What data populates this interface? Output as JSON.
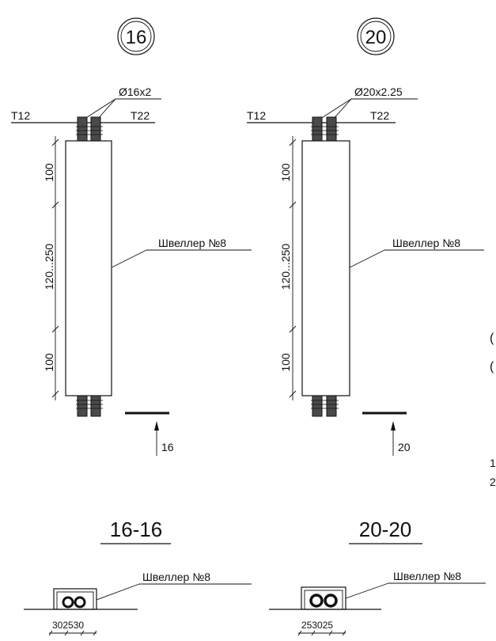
{
  "details": [
    {
      "id": "16",
      "badge": "16",
      "pipe_size": "Ø16x2",
      "label_left": "T12",
      "label_right": "T22",
      "dim_top": "100",
      "dim_mid": "120...250",
      "dim_bottom": "100",
      "channel_label": "Швеллер №8",
      "section_marker": "16",
      "section_title": "16-16",
      "section_channel_label": "Швеллер №8",
      "section_dims": "302530"
    },
    {
      "id": "20",
      "badge": "20",
      "pipe_size": "Ø20x2.25",
      "label_left": "T12",
      "label_right": "T22",
      "dim_top": "100",
      "dim_mid": "120...250",
      "dim_bottom": "100",
      "channel_label": "Швеллер №8",
      "section_marker": "20",
      "section_title": "20-20",
      "section_channel_label": "Швеллер №8",
      "section_dims": "253025"
    }
  ],
  "edge_fragments": [
    "(",
    "(",
    "1",
    "2"
  ]
}
